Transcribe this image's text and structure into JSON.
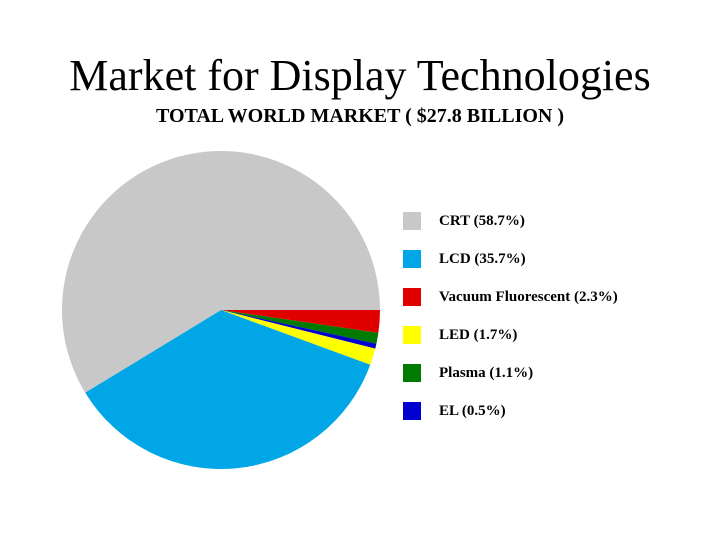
{
  "slide": {
    "title": "Market for Display Technologies",
    "subtitle": "TOTAL WORLD MARKET ( $27.8 BILLION )"
  },
  "chart_data": {
    "type": "pie",
    "title": "TOTAL WORLD MARKET ( $27.8 BILLION )",
    "categories": [
      "CRT",
      "LCD",
      "Vacuum Fluorescent",
      "LED",
      "Plasma",
      "EL"
    ],
    "values": [
      58.7,
      35.7,
      2.3,
      1.7,
      1.1,
      0.5
    ],
    "unit": "%",
    "legend_labels": [
      "CRT (58.7%)",
      "LCD (35.7%)",
      "Vacuum Fluorescent (2.3%)",
      "LED (1.7%)",
      "Plasma (1.1%)",
      "EL (0.5%)"
    ],
    "colors": [
      "#c8c8c8",
      "#00a6e6",
      "#e00000",
      "#ffff00",
      "#007a00",
      "#0000d0"
    ],
    "legend_position": "right",
    "slice_order_clockwise_from_east": [
      "Vacuum Fluorescent",
      "Plasma",
      "EL",
      "LED",
      "LCD",
      "CRT"
    ]
  }
}
